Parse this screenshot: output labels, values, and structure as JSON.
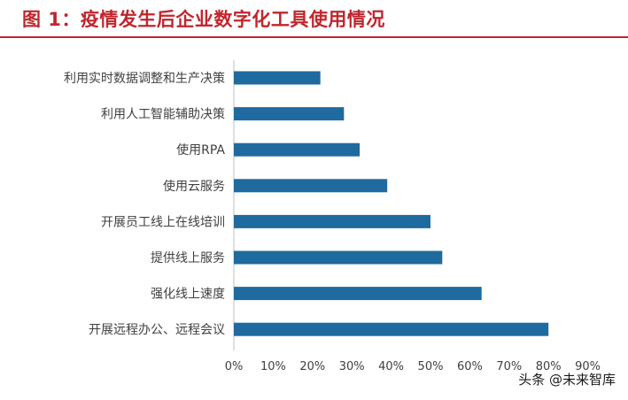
{
  "title": "图 1：疫情发生后企业数字化工具使用情况",
  "watermark": "头条 @未来智库",
  "chart_data": {
    "type": "bar",
    "orientation": "horizontal",
    "categories": [
      "利用实时数据调整和生产决策",
      "利用人工智能辅助决策",
      "使用RPA",
      "使用云服务",
      "开展员工线上在线培训",
      "提供线上服务",
      "强化线上速度",
      "开展远程办公、远程会议"
    ],
    "values": [
      22,
      28,
      32,
      39,
      50,
      53,
      63,
      80
    ],
    "xlim": [
      0,
      90
    ],
    "xticks": [
      "0%",
      "10%",
      "20%",
      "30%",
      "40%",
      "50%",
      "60%",
      "70%",
      "80%",
      "90%"
    ],
    "bar_color": "#1f6a9e",
    "grid": false,
    "legend": "none"
  }
}
